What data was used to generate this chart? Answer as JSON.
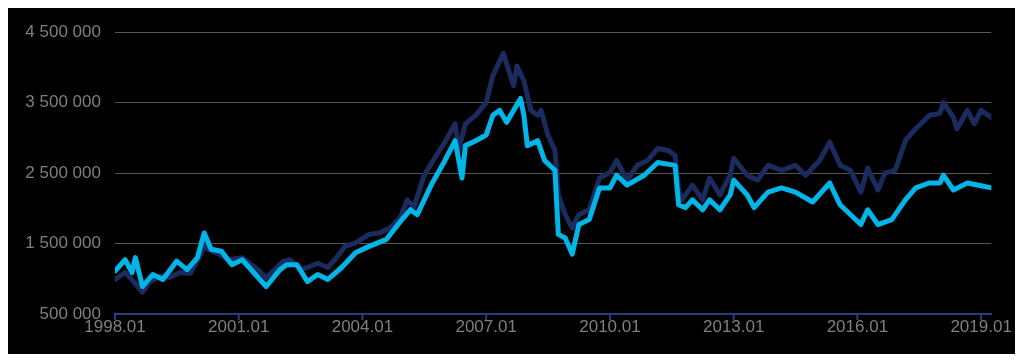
{
  "chart_data": {
    "type": "line",
    "xlim": [
      "1998-01",
      "2019-04"
    ],
    "xticks": [
      {
        "value": "1998-01",
        "label": "1998.01"
      },
      {
        "value": "2001-01",
        "label": "2001.01"
      },
      {
        "value": "2004-01",
        "label": "2004.01"
      },
      {
        "value": "2007-01",
        "label": "2007.01"
      },
      {
        "value": "2010-01",
        "label": "2010.01"
      },
      {
        "value": "2013-01",
        "label": "2013.01"
      },
      {
        "value": "2016-01",
        "label": "2016.01"
      },
      {
        "value": "2019-01",
        "label": "2019.01"
      }
    ],
    "ylim": [
      500000,
      4500000
    ],
    "yticks": [
      {
        "value": 500000,
        "label": "500 000"
      },
      {
        "value": 1500000,
        "label": "1 500 000"
      },
      {
        "value": 2500000,
        "label": "2 500 000"
      },
      {
        "value": 3500000,
        "label": "3 500 000"
      },
      {
        "value": 4500000,
        "label": "4 500 000"
      }
    ],
    "grid": "y",
    "legend": false,
    "marker": "none",
    "line_style": "solid",
    "series": [
      {
        "color": "#00b5e8",
        "x": [
          "1998-01",
          "1998-04",
          "1998-06",
          "1998-07",
          "1998-09",
          "1998-12",
          "1999-03",
          "1999-07",
          "1999-10",
          "2000-01",
          "2000-03",
          "2000-05",
          "2000-08",
          "2000-11",
          "2001-02",
          "2001-05",
          "2001-09",
          "2002-01",
          "2002-03",
          "2002-06",
          "2002-09",
          "2002-12",
          "2003-03",
          "2003-07",
          "2003-11",
          "2004-03",
          "2004-08",
          "2004-12",
          "2005-03",
          "2005-05",
          "2005-09",
          "2006-01",
          "2006-04",
          "2006-06",
          "2006-07",
          "2006-10",
          "2007-01",
          "2007-03",
          "2007-05",
          "2007-07",
          "2007-11",
          "2007-12",
          "2008-01",
          "2008-04",
          "2008-06",
          "2008-09",
          "2008-10",
          "2008-12",
          "2009-02",
          "2009-04",
          "2009-07",
          "2009-10",
          "2010-01",
          "2010-03",
          "2010-06",
          "2010-11",
          "2011-03",
          "2011-08",
          "2011-09",
          "2011-11",
          "2012-01",
          "2012-04",
          "2012-06",
          "2012-09",
          "2012-12",
          "2013-01",
          "2013-05",
          "2013-07",
          "2013-11",
          "2014-03",
          "2014-07",
          "2014-12",
          "2015-05",
          "2015-08",
          "2016-02",
          "2016-04",
          "2016-07",
          "2016-11",
          "2017-03",
          "2017-06",
          "2017-10",
          "2018-01",
          "2018-02",
          "2018-05",
          "2018-09",
          "2019-01",
          "2019-04"
        ],
        "values": [
          1110000,
          1270000,
          1090000,
          1300000,
          890000,
          1060000,
          990000,
          1250000,
          1130000,
          1300000,
          1650000,
          1420000,
          1390000,
          1200000,
          1270000,
          1110000,
          890000,
          1130000,
          1200000,
          1200000,
          960000,
          1060000,
          990000,
          1160000,
          1370000,
          1460000,
          1560000,
          1810000,
          1980000,
          1910000,
          2330000,
          2680000,
          2960000,
          2430000,
          2890000,
          2960000,
          3040000,
          3320000,
          3390000,
          3220000,
          3560000,
          3320000,
          2890000,
          2960000,
          2680000,
          2540000,
          1630000,
          1580000,
          1350000,
          1770000,
          1840000,
          2290000,
          2290000,
          2470000,
          2330000,
          2470000,
          2650000,
          2610000,
          2050000,
          2010000,
          2120000,
          1980000,
          2120000,
          1980000,
          2190000,
          2400000,
          2190000,
          2010000,
          2230000,
          2290000,
          2230000,
          2090000,
          2360000,
          2050000,
          1770000,
          1980000,
          1770000,
          1840000,
          2120000,
          2290000,
          2360000,
          2360000,
          2470000,
          2260000,
          2360000,
          2320000,
          2290000
        ]
      },
      {
        "color": "#1c2b5e",
        "x": [
          "1998-01",
          "1998-04",
          "1998-05",
          "1998-09",
          "1998-11",
          "1999-02",
          "1999-05",
          "1999-08",
          "1999-11",
          "2000-02",
          "2000-03",
          "2000-04",
          "2000-07",
          "2000-10",
          "2001-02",
          "2001-05",
          "2001-07",
          "2001-09",
          "2001-11",
          "2002-02",
          "2002-04",
          "2002-07",
          "2002-09",
          "2002-12",
          "2003-03",
          "2003-05",
          "2003-08",
          "2003-11",
          "2004-03",
          "2004-06",
          "2004-09",
          "2004-12",
          "2005-02",
          "2005-04",
          "2005-07",
          "2005-10",
          "2006-01",
          "2006-04",
          "2006-05",
          "2006-07",
          "2006-10",
          "2007-01",
          "2007-03",
          "2007-06",
          "2007-09",
          "2007-10",
          "2007-12",
          "2008-02",
          "2008-04",
          "2008-05",
          "2008-07",
          "2008-09",
          "2008-10",
          "2008-12",
          "2009-02",
          "2009-04",
          "2009-07",
          "2009-10",
          "2010-01",
          "2010-03",
          "2010-06",
          "2010-09",
          "2010-12",
          "2011-03",
          "2011-06",
          "2011-08",
          "2011-09",
          "2011-10",
          "2012-01",
          "2012-04",
          "2012-06",
          "2012-09",
          "2012-12",
          "2013-01",
          "2013-05",
          "2013-08",
          "2013-11",
          "2014-03",
          "2014-07",
          "2014-10",
          "2015-02",
          "2015-05",
          "2015-08",
          "2015-11",
          "2016-02",
          "2016-04",
          "2016-07",
          "2016-09",
          "2016-12",
          "2017-03",
          "2017-06",
          "2017-10",
          "2018-01",
          "2018-02",
          "2018-05",
          "2018-06",
          "2018-09",
          "2018-11",
          "2019-01",
          "2019-04"
        ],
        "values": [
          990000,
          1090000,
          1040000,
          810000,
          950000,
          1040000,
          1020000,
          1090000,
          1080000,
          1350000,
          1490000,
          1420000,
          1360000,
          1270000,
          1300000,
          1190000,
          1110000,
          1010000,
          1110000,
          1250000,
          1270000,
          1130000,
          1160000,
          1220000,
          1160000,
          1270000,
          1460000,
          1510000,
          1630000,
          1650000,
          1720000,
          1870000,
          2120000,
          2020000,
          2470000,
          2710000,
          2940000,
          3200000,
          2820000,
          3200000,
          3320000,
          3500000,
          3880000,
          4200000,
          3740000,
          4020000,
          3810000,
          3390000,
          3320000,
          3390000,
          3040000,
          2820000,
          2190000,
          1910000,
          1720000,
          1910000,
          1980000,
          2430000,
          2510000,
          2680000,
          2400000,
          2610000,
          2680000,
          2850000,
          2820000,
          2750000,
          2260000,
          2120000,
          2330000,
          2120000,
          2430000,
          2190000,
          2470000,
          2710000,
          2470000,
          2400000,
          2610000,
          2540000,
          2610000,
          2470000,
          2680000,
          2940000,
          2610000,
          2540000,
          2230000,
          2570000,
          2260000,
          2500000,
          2540000,
          2960000,
          3130000,
          3320000,
          3350000,
          3500000,
          3290000,
          3130000,
          3390000,
          3200000,
          3390000,
          3290000
        ]
      }
    ]
  }
}
